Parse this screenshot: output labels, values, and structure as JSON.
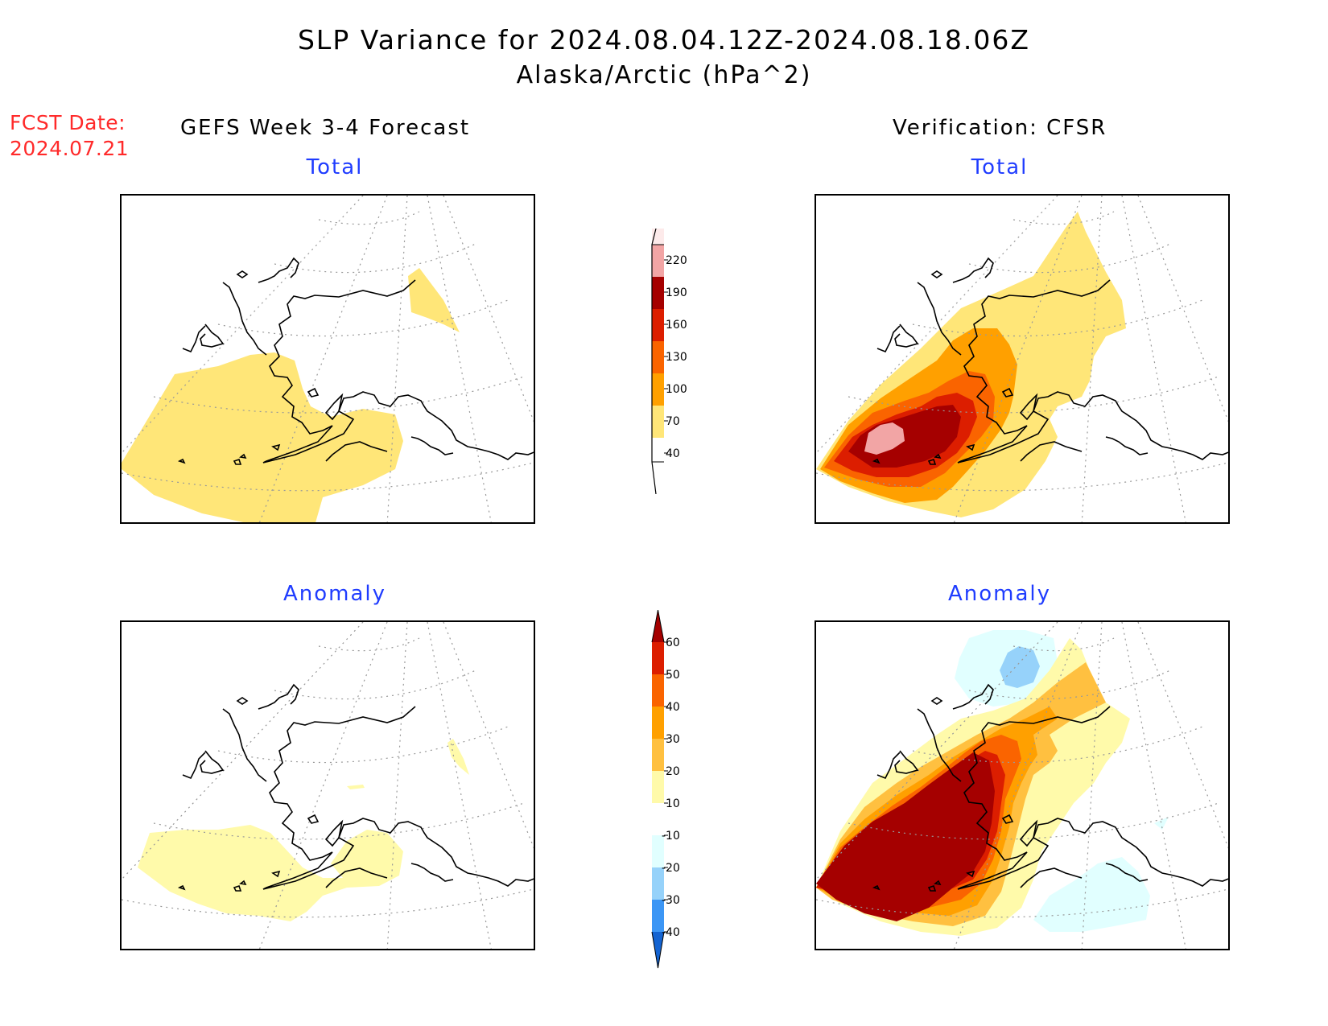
{
  "header": {
    "title_line1": "SLP Variance for 2024.08.04.12Z-2024.08.18.06Z",
    "title_line2": "Alaska/Arctic (hPa^2)"
  },
  "fcst": {
    "label": "FCST Date:",
    "date": "2024.07.21"
  },
  "columns": {
    "left_title": "GEFS Week 3-4 Forecast",
    "right_title": "Verification: CFSR"
  },
  "panels": {
    "top_left_title": "Total",
    "top_right_title": "Total",
    "bottom_left_title": "Anomaly",
    "bottom_right_title": "Anomaly"
  },
  "colorbar_total": {
    "labels": [
      "220",
      "190",
      "160",
      "130",
      "100",
      "70",
      "40"
    ],
    "colors": [
      "#fdeaea",
      "#f2a5a5",
      "#a50000",
      "#dc1e00",
      "#fa6400",
      "#ffa000",
      "#ffe678"
    ]
  },
  "colorbar_anomaly": {
    "labels": [
      "60",
      "50",
      "40",
      "30",
      "20",
      "10",
      "-10",
      "-20",
      "-30",
      "-40"
    ],
    "colors": [
      "#a50000",
      "#dc1e00",
      "#fa6400",
      "#ffa000",
      "#ffc040",
      "#fffaaa",
      "#ffffff",
      "#e1ffff",
      "#96d2fa",
      "#3c96f5",
      "#1464d2"
    ]
  },
  "fill_colors": {
    "40-70": "#ffe678",
    "70-100": "#ffa000",
    "100-130": "#fa6400",
    "130-160": "#dc1e00",
    "160-190": "#a50000",
    "190-220": "#f2a5a5",
    "anom_10_20": "#fffaaa",
    "anom_20_30": "#ffc040",
    "anom_30_40": "#ffa000",
    "anom_40_50": "#fa6400",
    "anom_50_60": "#dc1e00",
    "anom_60p": "#a50000",
    "anom_m10_m20": "#e1ffff",
    "anom_m20_m30": "#96d2fa"
  }
}
